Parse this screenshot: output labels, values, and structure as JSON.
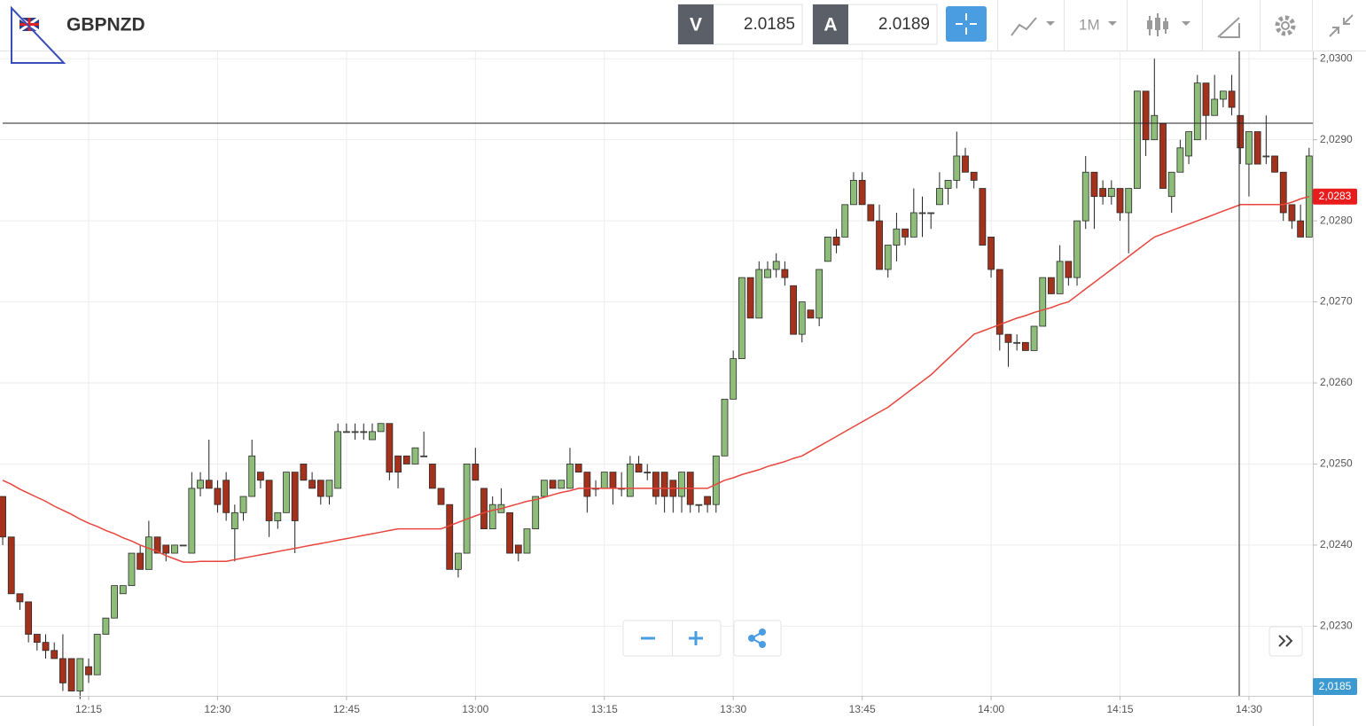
{
  "header": {
    "symbol": "GBPNZD",
    "bid_label": "V",
    "bid": 2.0185,
    "ask_label": "A",
    "ask": 2.0189,
    "timeframe": "1M"
  },
  "chart_data": {
    "type": "candlestick",
    "categories": [
      null,
      null,
      null,
      null,
      null,
      null,
      null,
      null,
      null,
      null,
      "12:15",
      null,
      null,
      null,
      null,
      null,
      null,
      null,
      null,
      null,
      null,
      null,
      null,
      null,
      null,
      "12:30",
      null,
      null,
      null,
      null,
      null,
      null,
      null,
      null,
      null,
      null,
      null,
      null,
      null,
      null,
      "12:45",
      null,
      null,
      null,
      null,
      null,
      null,
      null,
      null,
      null,
      null,
      null,
      null,
      null,
      null,
      "13:00",
      null,
      null,
      null,
      null,
      null,
      null,
      null,
      null,
      null,
      null,
      null,
      null,
      null,
      null,
      "13:15",
      null,
      null,
      null,
      null,
      null,
      null,
      null,
      null,
      null,
      null,
      null,
      null,
      null,
      null,
      "13:30",
      null,
      null,
      null,
      null,
      null,
      null,
      null,
      null,
      null,
      null,
      null,
      null,
      null,
      null,
      "13:45",
      null,
      null,
      null,
      null,
      null,
      null,
      null,
      null,
      null,
      null,
      null,
      null,
      null,
      null,
      "14:00",
      null,
      null,
      null,
      null,
      null,
      null,
      null,
      null,
      null,
      null,
      null,
      null,
      null,
      null,
      "14:15",
      null,
      null,
      null,
      null,
      null,
      null,
      null,
      null,
      null,
      null,
      null,
      null,
      null,
      null,
      "14:30",
      null,
      null,
      null,
      null,
      null,
      null,
      null
    ],
    "open": [
      2.0246,
      2.0241,
      2.0234,
      2.0233,
      2.0229,
      2.0228,
      2.0227,
      2.0226,
      2.0226,
      2.0222,
      2.0225,
      2.0224,
      2.0229,
      2.0231,
      2.0234,
      2.0235,
      2.0239,
      2.0237,
      2.0241,
      2.024,
      2.0239,
      2.024,
      2.0239,
      2.0247,
      2.0248,
      2.0247,
      2.0248,
      2.0242,
      2.0244,
      2.0246,
      2.0249,
      2.0248,
      2.0243,
      2.0244,
      2.0249,
      2.025,
      2.0248,
      2.0248,
      2.0246,
      2.0247,
      2.0254,
      2.0254,
      2.0254,
      2.0253,
      2.0254,
      2.0255,
      2.0251,
      2.0251,
      2.025,
      2.0251,
      2.025,
      2.0247,
      2.0245,
      2.0237,
      2.0239,
      2.025,
      2.0247,
      2.0242,
      2.0244,
      2.0244,
      2.024,
      2.0239,
      2.0242,
      2.0246,
      2.0248,
      2.0247,
      2.0247,
      2.025,
      2.0249,
      2.0247,
      2.0247,
      2.0249,
      2.0247,
      2.0246,
      2.025,
      2.0249,
      2.0249,
      2.0249,
      2.0248,
      2.0246,
      2.0249,
      2.0245,
      2.0246,
      2.0245,
      2.0251,
      2.0258,
      2.0263,
      2.0273,
      2.0268,
      2.0273,
      2.0274,
      2.0274,
      2.0272,
      2.0266,
      2.0269,
      2.0268,
      2.0275,
      2.0278,
      2.0278,
      2.0282,
      2.0285,
      2.0282,
      2.028,
      2.0274,
      2.0277,
      2.0279,
      2.0278,
      2.0281,
      2.0281,
      2.0282,
      2.0284,
      2.0285,
      2.0288,
      2.0286,
      2.0284,
      2.0278,
      2.0274,
      2.0266,
      2.0265,
      2.0265,
      2.0264,
      2.0267,
      2.0273,
      2.0271,
      2.0275,
      2.0273,
      2.028,
      2.0286,
      2.0284,
      2.0283,
      2.0284,
      2.0281,
      2.0284,
      2.0296,
      2.029,
      2.0292,
      2.0283,
      2.0286,
      2.0288,
      2.029,
      2.0297,
      2.0293,
      2.0295,
      2.0296,
      2.0293,
      2.0287,
      2.0291,
      2.0288,
      2.0288,
      2.0286,
      2.0282,
      2.028,
      2.0278
    ],
    "high": [
      2.0246,
      2.0241,
      2.0234,
      2.0233,
      2.0229,
      2.0229,
      2.0228,
      2.0229,
      2.0226,
      2.0226,
      2.0226,
      2.0229,
      2.0231,
      2.0235,
      2.0235,
      2.0239,
      2.024,
      2.0243,
      2.0241,
      2.024,
      2.024,
      2.024,
      2.0249,
      2.0249,
      2.0253,
      2.0248,
      2.0249,
      2.0245,
      2.0246,
      2.0253,
      2.0249,
      2.0248,
      2.0244,
      2.0249,
      2.0249,
      2.025,
      2.0249,
      2.0248,
      2.0248,
      2.0255,
      2.0255,
      2.0255,
      2.0255,
      2.0255,
      2.0255,
      2.0255,
      2.0251,
      2.0251,
      2.0252,
      2.0254,
      2.025,
      2.0247,
      2.0245,
      2.0239,
      2.025,
      2.0252,
      2.0247,
      2.0246,
      2.0247,
      2.0244,
      2.024,
      2.0242,
      2.0246,
      2.0248,
      2.0248,
      2.0248,
      2.0252,
      2.025,
      2.0249,
      2.0248,
      2.0249,
      2.0249,
      2.0249,
      2.0251,
      2.0251,
      2.025,
      2.0249,
      2.0249,
      2.0248,
      2.0249,
      2.0249,
      2.0245,
      2.0246,
      2.0251,
      2.0258,
      2.0264,
      2.0273,
      2.0273,
      2.0275,
      2.0275,
      2.0276,
      2.0275,
      2.0272,
      2.027,
      2.0269,
      2.0274,
      2.0278,
      2.0279,
      2.0282,
      2.0286,
      2.0286,
      2.0282,
      2.0282,
      2.0277,
      2.0281,
      2.0279,
      2.0284,
      2.0283,
      2.0281,
      2.0286,
      2.0285,
      2.0291,
      2.0289,
      2.0286,
      2.0284,
      2.0278,
      2.0274,
      2.0266,
      2.0266,
      2.0265,
      2.0267,
      2.0273,
      2.0273,
      2.0277,
      2.0275,
      2.028,
      2.0288,
      2.0286,
      2.0285,
      2.0285,
      2.0284,
      2.0284,
      2.0296,
      2.0296,
      2.03,
      2.0292,
      2.0286,
      2.029,
      2.0291,
      2.0298,
      2.0297,
      2.0298,
      2.0296,
      2.0298,
      2.0293,
      2.0291,
      2.0291,
      2.0293,
      2.0288,
      2.0286,
      2.0282,
      2.0282,
      2.0289
    ],
    "low": [
      2.024,
      2.0234,
      2.0232,
      2.0228,
      2.0227,
      2.0226,
      2.0226,
      2.0222,
      2.0222,
      2.0221,
      2.0223,
      2.0224,
      2.0229,
      2.0231,
      2.0234,
      2.0235,
      2.0237,
      2.0237,
      2.0239,
      2.0238,
      2.0239,
      2.024,
      2.0239,
      2.0246,
      2.0247,
      2.0244,
      2.0243,
      2.0238,
      2.0243,
      2.0246,
      2.0247,
      2.0241,
      2.0242,
      2.0244,
      2.0239,
      2.0248,
      2.0247,
      2.0245,
      2.0245,
      2.0247,
      2.0254,
      2.0253,
      2.0253,
      2.0253,
      2.0254,
      2.0248,
      2.0247,
      2.025,
      2.025,
      2.0251,
      2.0247,
      2.0245,
      2.0237,
      2.0236,
      2.0239,
      2.0248,
      2.0242,
      2.0242,
      2.0244,
      2.0239,
      2.0238,
      2.0239,
      2.0242,
      2.0246,
      2.0247,
      2.0247,
      2.0247,
      2.0249,
      2.0244,
      2.0246,
      2.0247,
      2.0245,
      2.0246,
      2.0246,
      2.0249,
      2.0248,
      2.0245,
      2.0244,
      2.0244,
      2.0244,
      2.0244,
      2.0244,
      2.0244,
      2.0244,
      2.0251,
      2.0258,
      2.0263,
      2.0268,
      2.0268,
      2.0273,
      2.0273,
      2.0272,
      2.0266,
      2.0265,
      2.0268,
      2.0267,
      2.0275,
      2.0276,
      2.0278,
      2.0282,
      2.0282,
      2.028,
      2.0274,
      2.0273,
      2.0275,
      2.0277,
      2.0278,
      2.0278,
      2.0279,
      2.0282,
      2.0282,
      2.0284,
      2.0286,
      2.0284,
      2.0277,
      2.0273,
      2.0264,
      2.0262,
      2.0264,
      2.0264,
      2.0264,
      2.0267,
      2.0271,
      2.0271,
      2.0272,
      2.0272,
      2.0279,
      2.0279,
      2.0282,
      2.0282,
      2.028,
      2.0276,
      2.0284,
      2.0288,
      2.029,
      2.0284,
      2.0281,
      2.0286,
      2.0287,
      2.029,
      2.029,
      2.0293,
      2.0294,
      2.0293,
      2.0287,
      2.0283,
      2.0287,
      2.0287,
      2.0286,
      2.028,
      2.0279,
      2.0278,
      2.0278
    ],
    "close": [
      2.0241,
      2.0234,
      2.0233,
      2.0229,
      2.0228,
      2.0227,
      2.0226,
      2.0223,
      2.0222,
      2.0226,
      2.0224,
      2.0229,
      2.0231,
      2.0235,
      2.0235,
      2.0239,
      2.0237,
      2.0241,
      2.0239,
      2.0239,
      2.024,
      2.024,
      2.0247,
      2.0248,
      2.0247,
      2.0245,
      2.0244,
      2.0244,
      2.0246,
      2.0251,
      2.0248,
      2.0243,
      2.0244,
      2.0249,
      2.0243,
      2.0248,
      2.0247,
      2.0246,
      2.0248,
      2.0254,
      2.0254,
      2.0254,
      2.0254,
      2.0254,
      2.0255,
      2.0249,
      2.0249,
      2.025,
      2.0252,
      2.0251,
      2.0247,
      2.0245,
      2.0237,
      2.0239,
      2.025,
      2.0248,
      2.0242,
      2.0245,
      2.0245,
      2.0239,
      2.0239,
      2.0242,
      2.0246,
      2.0248,
      2.0247,
      2.0248,
      2.025,
      2.0249,
      2.0246,
      2.0247,
      2.0249,
      2.0247,
      2.0247,
      2.025,
      2.0249,
      2.0249,
      2.0246,
      2.0246,
      2.0246,
      2.0249,
      2.0245,
      2.0245,
      2.0245,
      2.0251,
      2.0258,
      2.0263,
      2.0273,
      2.0268,
      2.0274,
      2.0274,
      2.0275,
      2.0273,
      2.0266,
      2.027,
      2.0268,
      2.0274,
      2.0278,
      2.0277,
      2.0282,
      2.0285,
      2.0282,
      2.028,
      2.0274,
      2.0277,
      2.0279,
      2.0278,
      2.0281,
      2.0281,
      2.0281,
      2.0284,
      2.0285,
      2.0288,
      2.0286,
      2.0285,
      2.0277,
      2.0274,
      2.0266,
      2.0265,
      2.0265,
      2.0264,
      2.0267,
      2.0273,
      2.0271,
      2.0275,
      2.0273,
      2.028,
      2.0286,
      2.0283,
      2.0283,
      2.0284,
      2.0281,
      2.0284,
      2.0296,
      2.029,
      2.0293,
      2.0284,
      2.0286,
      2.0289,
      2.0291,
      2.0297,
      2.0293,
      2.0295,
      2.0296,
      2.0294,
      2.0289,
      2.0291,
      2.0287,
      2.0288,
      2.0286,
      2.0281,
      2.028,
      2.0278,
      2.0288
    ],
    "up_color": "#8dbd78",
    "down_color": "#a3311b",
    "moving_average": {
      "color": "#e8453c",
      "values": [
        2.0248,
        2.02475,
        2.02469,
        2.02464,
        2.02459,
        2.02454,
        2.02448,
        2.02443,
        2.02438,
        2.02432,
        2.02427,
        2.02423,
        2.02418,
        2.02414,
        2.02409,
        2.02405,
        2.024,
        2.02396,
        2.02392,
        2.02387,
        2.02383,
        2.02379,
        2.02379,
        2.0238,
        2.0238,
        2.0238,
        2.0238,
        2.02382,
        2.02384,
        2.02386,
        2.02388,
        2.0239,
        2.02392,
        2.02394,
        2.02396,
        2.02398,
        2.024,
        2.02402,
        2.02404,
        2.02406,
        2.02408,
        2.0241,
        2.02412,
        2.02414,
        2.02416,
        2.02418,
        2.0242,
        2.0242,
        2.0242,
        2.0242,
        2.0242,
        2.0242,
        2.02424,
        2.02428,
        2.02432,
        2.02436,
        2.0244,
        2.02443,
        2.02445,
        2.02448,
        2.02451,
        2.02454,
        2.02456,
        2.02459,
        2.02462,
        2.02465,
        2.02467,
        2.0247,
        2.0247,
        2.0247,
        2.0247,
        2.0247,
        2.0247,
        2.0247,
        2.0247,
        2.0247,
        2.0247,
        2.0247,
        2.0247,
        2.0247,
        2.0247,
        2.0247,
        2.0247,
        2.02475,
        2.0248,
        2.02483,
        2.02487,
        2.0249,
        2.02493,
        2.02497,
        2.025,
        2.02503,
        2.02507,
        2.0251,
        2.02516,
        2.02522,
        2.02528,
        2.02534,
        2.0254,
        2.02546,
        2.02552,
        2.02558,
        2.02564,
        2.0257,
        2.02578,
        2.02586,
        2.02594,
        2.02602,
        2.0261,
        2.0262,
        2.0263,
        2.0264,
        2.0265,
        2.0266,
        2.02664,
        2.02668,
        2.02672,
        2.02676,
        2.0268,
        2.02683,
        2.02687,
        2.0269,
        2.02693,
        2.02697,
        2.027,
        2.02708,
        2.02716,
        2.02724,
        2.02732,
        2.0274,
        2.02748,
        2.02756,
        2.02764,
        2.02772,
        2.0278,
        2.02784,
        2.02788,
        2.02792,
        2.02796,
        2.028,
        2.02804,
        2.02808,
        2.02812,
        2.02816,
        2.0282,
        2.0282,
        2.0282,
        2.0282,
        2.0282,
        2.0282,
        2.02823,
        2.02827,
        2.0283
      ]
    },
    "ylim": [
      2.02214,
      2.03009
    ],
    "yticks": [
      {
        "value": 2.023,
        "label": "2,0230"
      },
      {
        "value": 2.024,
        "label": "2,0240"
      },
      {
        "value": 2.025,
        "label": "2,0250"
      },
      {
        "value": 2.026,
        "label": "2,0260"
      },
      {
        "value": 2.027,
        "label": "2,0270"
      },
      {
        "value": 2.028,
        "label": "2,0280"
      },
      {
        "value": 2.029,
        "label": "2,0290"
      },
      {
        "value": 2.03,
        "label": "2,0300"
      }
    ],
    "grid": true,
    "last_price": {
      "value": 2.0283,
      "label": "2,0283"
    },
    "cursor_price_label": "2,0185"
  }
}
